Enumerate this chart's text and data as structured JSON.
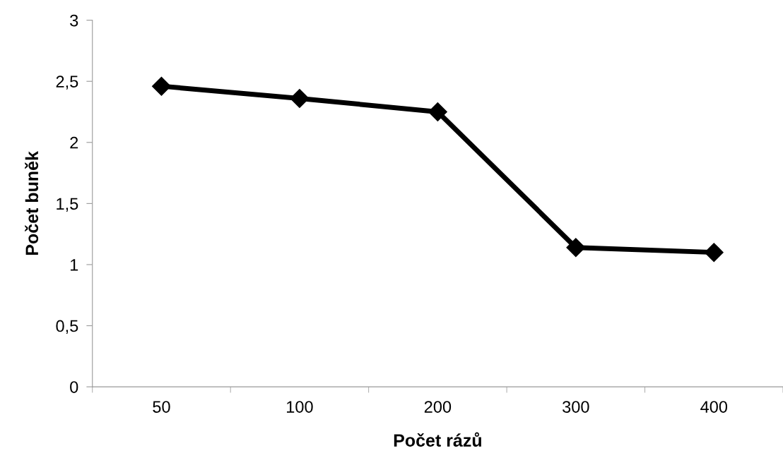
{
  "chart_data": {
    "type": "line",
    "xlabel": "Počet rázů",
    "ylabel": "Počet buněk",
    "categories": [
      "50",
      "100",
      "200",
      "300",
      "400"
    ],
    "series": [
      {
        "color": "#000000",
        "values": [
          2.46,
          2.36,
          2.25,
          1.14,
          1.1
        ]
      }
    ],
    "ylim": [
      0,
      3
    ],
    "yticks": [
      {
        "value": 0,
        "label": "0"
      },
      {
        "value": 0.5,
        "label": "0,5"
      },
      {
        "value": 1,
        "label": "1"
      },
      {
        "value": 1.5,
        "label": "1,5"
      },
      {
        "value": 2,
        "label": "2"
      },
      {
        "value": 2.5,
        "label": "2,5"
      },
      {
        "value": 3,
        "label": "3"
      }
    ],
    "marker": "diamond",
    "line_style": "solid"
  }
}
